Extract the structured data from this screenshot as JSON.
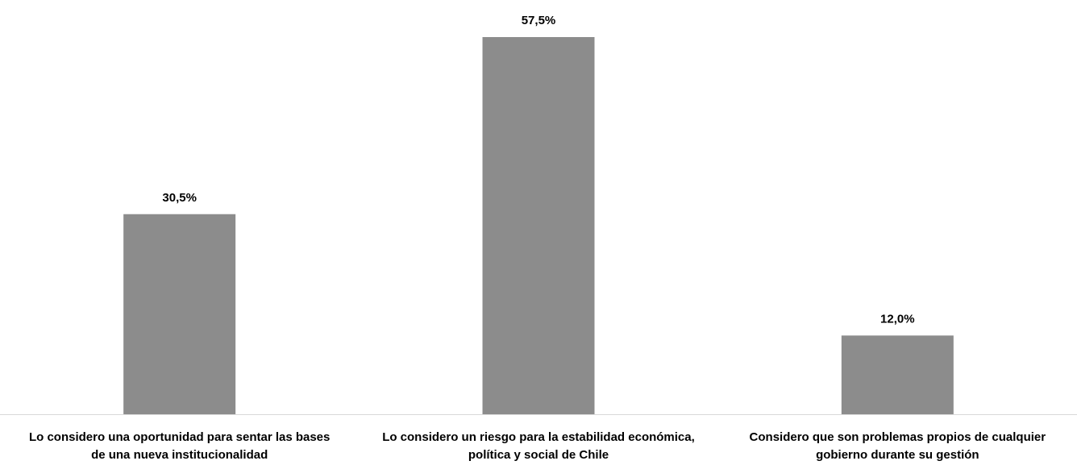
{
  "chart_data": {
    "type": "bar",
    "categories": [
      [
        "Lo considero una oportunidad para sentar las bases",
        "de una nueva institucionalidad"
      ],
      [
        "Lo considero un riesgo para la estabilidad económica,",
        "política y social de Chile"
      ],
      [
        "Considero que son problemas propios de cualquier",
        "gobierno durante su gestión"
      ]
    ],
    "values": [
      30.5,
      57.5,
      12.0
    ],
    "data_labels": [
      "30,5%",
      "57,5%",
      "12,0%"
    ],
    "ylim": [
      0,
      60
    ],
    "grid": false,
    "legend": "none",
    "bar_color": "#8c8c8c",
    "axis_color": "#d9d9d9"
  }
}
